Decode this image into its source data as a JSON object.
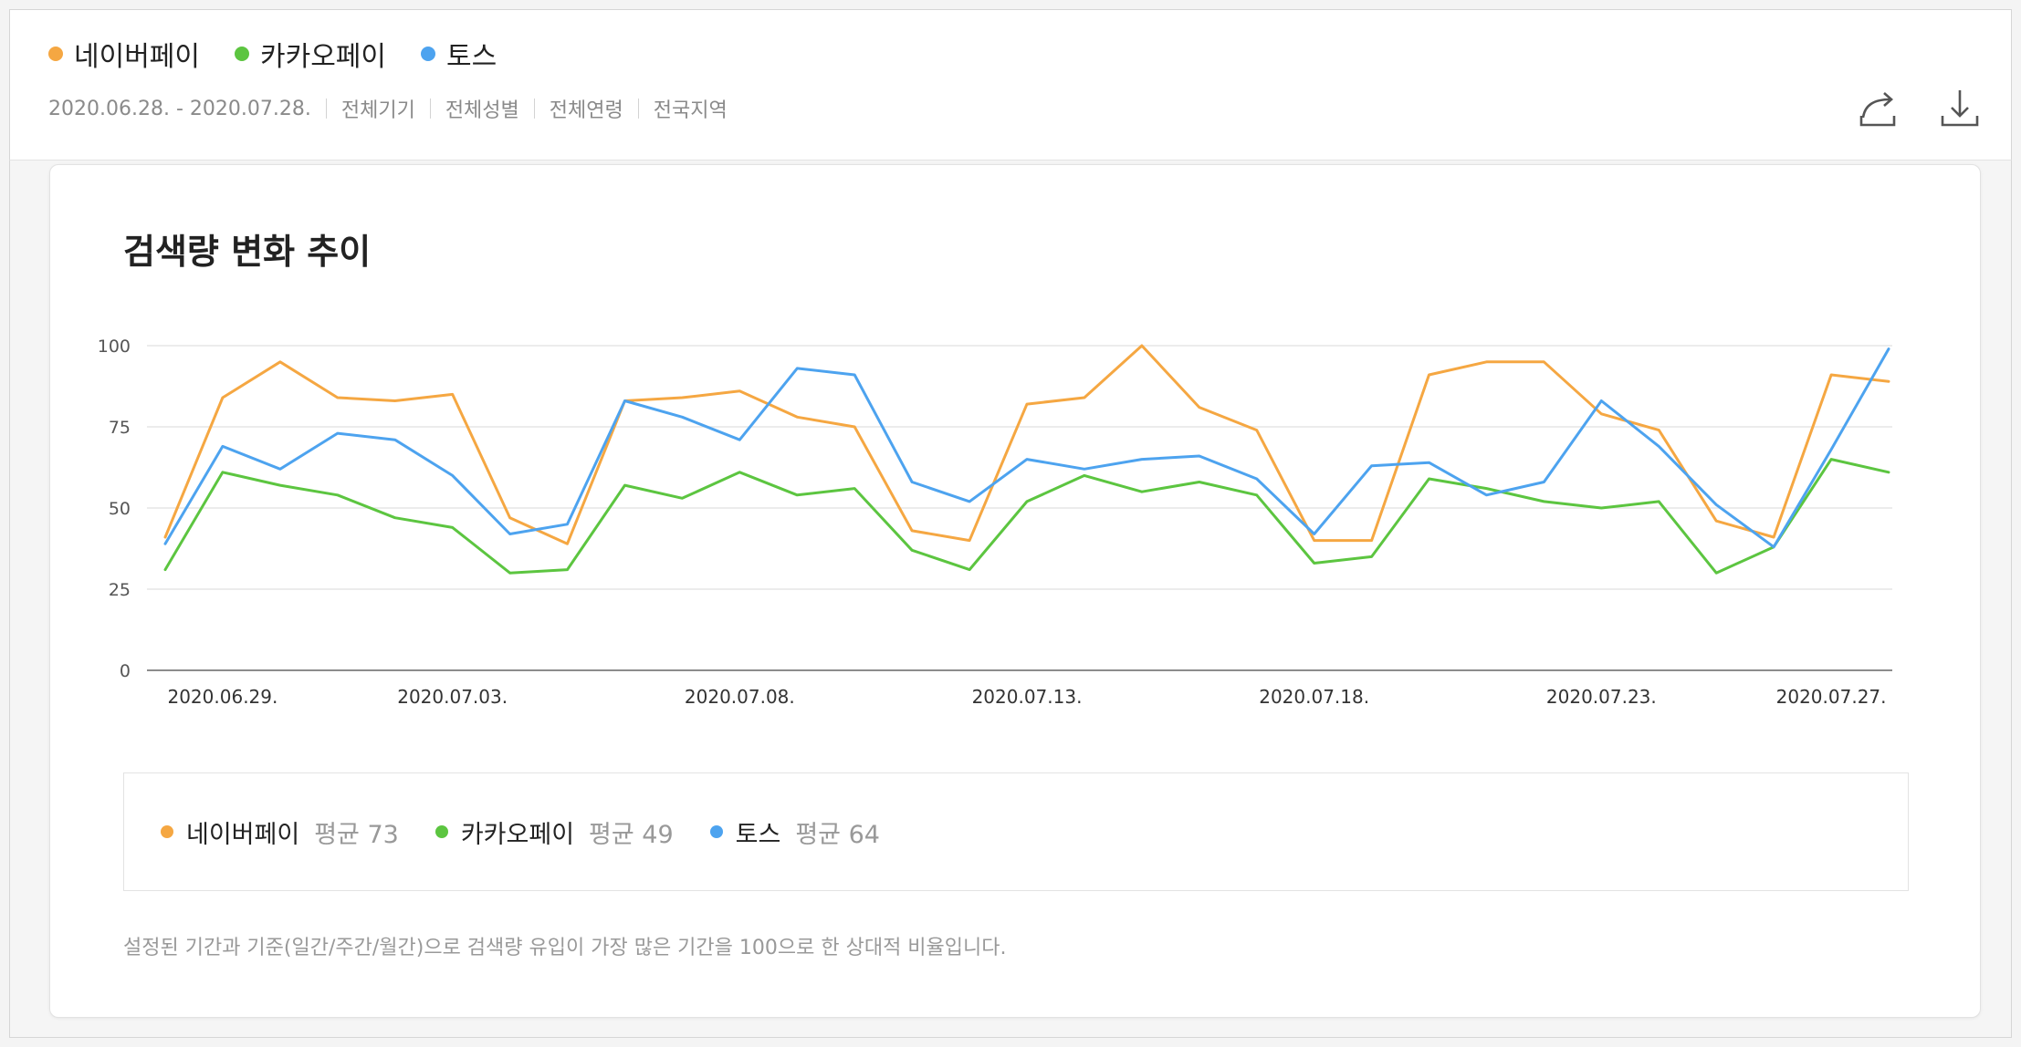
{
  "header": {
    "legend": [
      {
        "label": "네이버페이",
        "color": "#f5a742"
      },
      {
        "label": "카카오페이",
        "color": "#5cc540"
      },
      {
        "label": "토스",
        "color": "#4da3ef"
      }
    ],
    "filters": [
      "2020.06.28. - 2020.07.28.",
      "전체기기",
      "전체성별",
      "전체연령",
      "전국지역"
    ],
    "share_icon": "share-icon",
    "download_icon": "download-icon"
  },
  "card": {
    "title": "검색량 변화 추이",
    "legend": [
      {
        "label": "네이버페이",
        "avg_label": "평균 73",
        "color": "#f5a742"
      },
      {
        "label": "카카오페이",
        "avg_label": "평균 49",
        "color": "#5cc540"
      },
      {
        "label": "토스",
        "avg_label": "평균 64",
        "color": "#4da3ef"
      }
    ],
    "footnote": "설정된 기간과 기준(일간/주간/월간)으로 검색량 유입이 가장 많은 기간을 100으로 한 상대적 비율입니다."
  },
  "chart_data": {
    "type": "line",
    "title": "검색량 변화 추이",
    "xlabel": "",
    "ylabel": "",
    "ylim": [
      0,
      100
    ],
    "y_ticks": [
      0,
      25,
      50,
      75,
      100
    ],
    "x": [
      "2020.06.28.",
      "2020.06.29.",
      "2020.06.30.",
      "2020.07.01.",
      "2020.07.02.",
      "2020.07.03.",
      "2020.07.04.",
      "2020.07.05.",
      "2020.07.06.",
      "2020.07.07.",
      "2020.07.08.",
      "2020.07.09.",
      "2020.07.10.",
      "2020.07.11.",
      "2020.07.12.",
      "2020.07.13.",
      "2020.07.14.",
      "2020.07.15.",
      "2020.07.16.",
      "2020.07.17.",
      "2020.07.18.",
      "2020.07.19.",
      "2020.07.20.",
      "2020.07.21.",
      "2020.07.22.",
      "2020.07.23.",
      "2020.07.24.",
      "2020.07.25.",
      "2020.07.26.",
      "2020.07.27.",
      "2020.07.28."
    ],
    "x_tick_labels": [
      "2020.06.29.",
      "2020.07.03.",
      "2020.07.08.",
      "2020.07.13.",
      "2020.07.18.",
      "2020.07.23.",
      "2020.07.27."
    ],
    "grid": true,
    "series": [
      {
        "name": "네이버페이",
        "color": "#f5a742",
        "values": [
          41,
          84,
          95,
          84,
          83,
          85,
          47,
          39,
          83,
          84,
          86,
          78,
          75,
          43,
          40,
          82,
          84,
          100,
          81,
          74,
          40,
          40,
          91,
          95,
          95,
          79,
          74,
          46,
          41,
          91,
          89
        ]
      },
      {
        "name": "카카오페이",
        "color": "#5cc540",
        "values": [
          31,
          61,
          57,
          54,
          47,
          44,
          30,
          31,
          57,
          53,
          61,
          54,
          56,
          37,
          31,
          52,
          60,
          55,
          58,
          54,
          33,
          35,
          59,
          56,
          52,
          50,
          52,
          30,
          38,
          65,
          61
        ]
      },
      {
        "name": "토스",
        "color": "#4da3ef",
        "values": [
          39,
          69,
          62,
          73,
          71,
          60,
          42,
          45,
          83,
          78,
          71,
          93,
          91,
          58,
          52,
          65,
          62,
          65,
          66,
          59,
          42,
          63,
          64,
          54,
          58,
          83,
          69,
          51,
          38,
          68,
          99
        ]
      }
    ]
  }
}
